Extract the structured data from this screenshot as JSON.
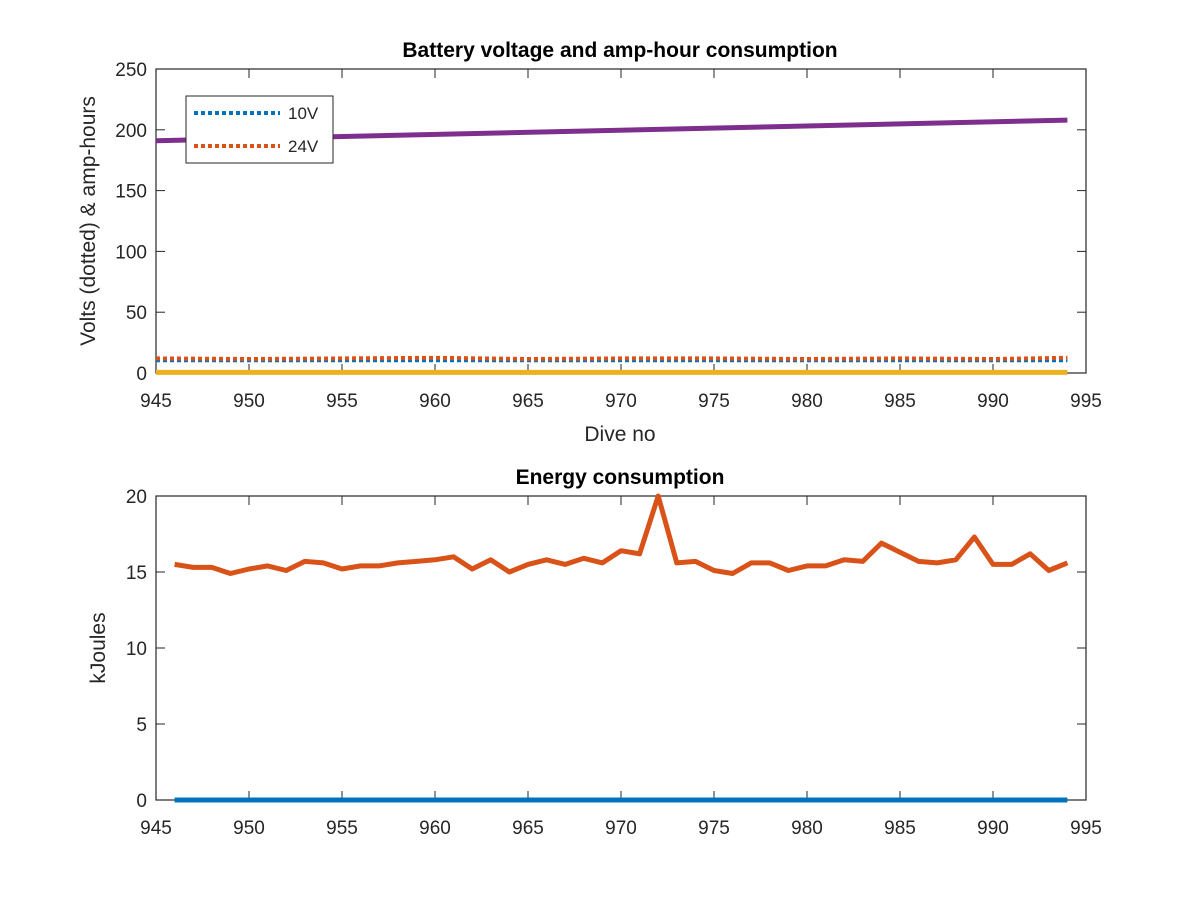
{
  "chart_data": [
    {
      "type": "line",
      "title": "Battery voltage and amp-hour consumption",
      "xlabel": "Dive no",
      "ylabel": "Volts (dotted) & amp-hours",
      "xlim": [
        945,
        995
      ],
      "ylim": [
        0,
        250
      ],
      "xticks": [
        945,
        950,
        955,
        960,
        965,
        970,
        975,
        980,
        985,
        990,
        995
      ],
      "yticks": [
        0,
        50,
        100,
        150,
        200,
        250
      ],
      "grid": false,
      "legend_position": "top-left",
      "series": [
        {
          "name": "10V",
          "style": "dotted",
          "color": "#0072BD",
          "x": [
            945,
            994
          ],
          "y": [
            10.5,
            10.5
          ]
        },
        {
          "name": "24V",
          "style": "dotted",
          "color": "#D95319",
          "x": [
            945,
            950,
            955,
            960,
            965,
            970,
            975,
            980,
            985,
            990,
            994
          ],
          "y": [
            12,
            11.5,
            12,
            12.5,
            11.5,
            12,
            12,
            11.5,
            12,
            11.5,
            12.5
          ]
        },
        {
          "style": "solid",
          "color": "#7E2F8E",
          "x": [
            945,
            994
          ],
          "y": [
            191,
            208
          ]
        },
        {
          "style": "solid",
          "color": "#EDB120",
          "x": [
            945,
            994
          ],
          "y": [
            0.5,
            0.5
          ]
        }
      ]
    },
    {
      "type": "line",
      "title": "Energy consumption",
      "xlabel": "",
      "ylabel": "kJoules",
      "xlim": [
        945,
        995
      ],
      "ylim": [
        0,
        20
      ],
      "xticks": [
        945,
        950,
        955,
        960,
        965,
        970,
        975,
        980,
        985,
        990,
        995
      ],
      "yticks": [
        0,
        5,
        10,
        15,
        20
      ],
      "grid": false,
      "series": [
        {
          "style": "solid",
          "color": "#0072BD",
          "x": [
            946,
            994
          ],
          "y": [
            0,
            0
          ]
        },
        {
          "style": "solid",
          "color": "#D95319",
          "x": [
            946,
            947,
            948,
            949,
            950,
            951,
            952,
            953,
            954,
            955,
            956,
            957,
            958,
            959,
            960,
            961,
            962,
            963,
            964,
            965,
            966,
            967,
            968,
            969,
            970,
            971,
            972,
            973,
            974,
            975,
            976,
            977,
            978,
            979,
            980,
            981,
            982,
            983,
            984,
            985,
            986,
            987,
            988,
            989,
            990,
            991,
            992,
            993,
            994
          ],
          "y": [
            15.5,
            15.3,
            15.3,
            14.9,
            15.2,
            15.4,
            15.1,
            15.7,
            15.6,
            15.2,
            15.4,
            15.4,
            15.6,
            15.7,
            15.8,
            16.0,
            15.2,
            15.8,
            15.0,
            15.5,
            15.8,
            15.5,
            15.9,
            15.6,
            16.4,
            16.2,
            20.0,
            15.6,
            15.7,
            15.1,
            14.9,
            15.6,
            15.6,
            15.1,
            15.4,
            15.4,
            15.8,
            15.7,
            16.9,
            16.3,
            15.7,
            15.6,
            15.8,
            17.3,
            15.5,
            15.5,
            16.2,
            15.1,
            15.6
          ]
        }
      ]
    }
  ]
}
